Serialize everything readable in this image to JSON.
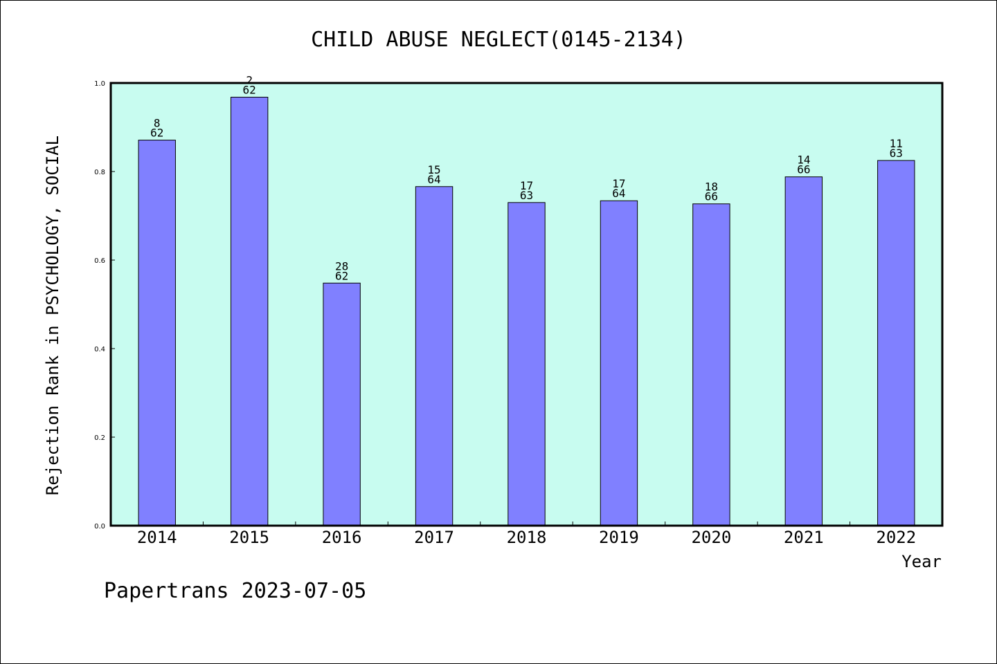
{
  "chart_data": {
    "type": "bar",
    "title": "CHILD ABUSE NEGLECT(0145-2134)",
    "xlabel": "Year",
    "ylabel": "Rejection Rank in PSYCHOLOGY, SOCIAL",
    "ylim": [
      0,
      1.0
    ],
    "yticks": [
      "0.0",
      "0.2",
      "0.4",
      "0.6",
      "0.8",
      "1.0"
    ],
    "categories": [
      "2014",
      "2015",
      "2016",
      "2017",
      "2018",
      "2019",
      "2020",
      "2021",
      "2022"
    ],
    "values": [
      0.871,
      0.968,
      0.548,
      0.766,
      0.73,
      0.734,
      0.727,
      0.788,
      0.825
    ],
    "bar_labels": [
      {
        "rank": "8",
        "total": "62"
      },
      {
        "rank": "2",
        "total": "62"
      },
      {
        "rank": "28",
        "total": "62"
      },
      {
        "rank": "15",
        "total": "64"
      },
      {
        "rank": "17",
        "total": "63"
      },
      {
        "rank": "17",
        "total": "64"
      },
      {
        "rank": "18",
        "total": "66"
      },
      {
        "rank": "14",
        "total": "66"
      },
      {
        "rank": "11",
        "total": "63"
      }
    ],
    "grid": false,
    "colors": {
      "bar": "#8080ff",
      "plot_background": "#c8fcf0",
      "frame": "#000000"
    }
  },
  "footer": "Papertrans 2023-07-05"
}
